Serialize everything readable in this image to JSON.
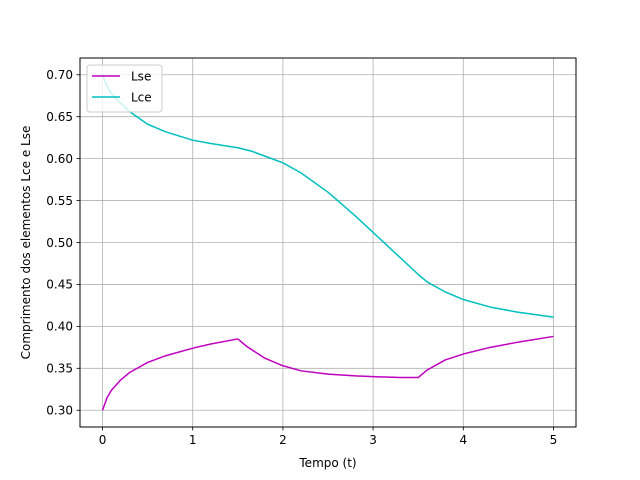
{
  "chart_data": {
    "type": "line",
    "title": "",
    "xlabel": "Tempo (t)",
    "ylabel": "Comprimento dos elementos Lce e Lse",
    "xlim": [
      -0.25,
      5.25
    ],
    "ylim": [
      0.28,
      0.72
    ],
    "xticks": [
      0,
      1,
      2,
      3,
      4,
      5
    ],
    "xtick_labels": [
      "0",
      "1",
      "2",
      "3",
      "4",
      "5"
    ],
    "yticks": [
      0.3,
      0.35,
      0.4,
      0.45,
      0.5,
      0.55,
      0.6,
      0.65,
      0.7
    ],
    "ytick_labels": [
      "0.30",
      "0.35",
      "0.40",
      "0.45",
      "0.50",
      "0.55",
      "0.60",
      "0.65",
      "0.70"
    ],
    "grid": true,
    "legend_position": "top-left",
    "series": [
      {
        "name": "Lse",
        "color": "#bf00bf",
        "x": [
          0,
          0.05,
          0.1,
          0.2,
          0.3,
          0.5,
          0.7,
          1.0,
          1.2,
          1.5,
          1.6,
          1.8,
          2.0,
          2.2,
          2.5,
          2.8,
          3.0,
          3.3,
          3.5,
          3.6,
          3.8,
          4.0,
          4.3,
          4.6,
          5.0
        ],
        "y": [
          0.3,
          0.315,
          0.324,
          0.336,
          0.345,
          0.357,
          0.365,
          0.374,
          0.379,
          0.385,
          0.376,
          0.362,
          0.353,
          0.347,
          0.343,
          0.341,
          0.34,
          0.339,
          0.339,
          0.348,
          0.36,
          0.367,
          0.375,
          0.381,
          0.388
        ]
      },
      {
        "name": "Lce",
        "color": "#00bfbf",
        "x": [
          0,
          0.05,
          0.1,
          0.2,
          0.3,
          0.5,
          0.7,
          1.0,
          1.2,
          1.5,
          1.65,
          1.8,
          2.0,
          2.2,
          2.5,
          2.8,
          3.0,
          3.3,
          3.5,
          3.6,
          3.8,
          4.0,
          4.3,
          4.6,
          5.0
        ],
        "y": [
          0.7,
          0.686,
          0.677,
          0.666,
          0.656,
          0.641,
          0.632,
          0.622,
          0.618,
          0.613,
          0.609,
          0.603,
          0.595,
          0.583,
          0.56,
          0.532,
          0.512,
          0.482,
          0.462,
          0.453,
          0.441,
          0.432,
          0.423,
          0.417,
          0.411
        ]
      }
    ]
  }
}
